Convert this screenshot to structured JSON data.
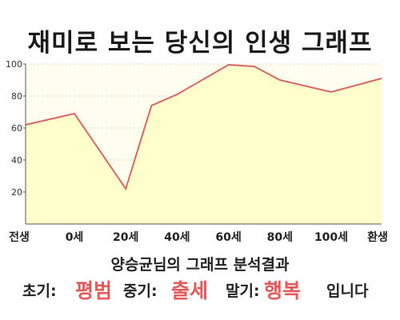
{
  "title": "재미로 보는 당신의 인생 그래프",
  "chart_data": {
    "type": "area",
    "x": [
      "전생",
      "0세",
      "20세",
      "40세",
      "60세",
      "80세",
      "100세",
      "환생"
    ],
    "points": [
      {
        "x": "전생",
        "y": 62
      },
      {
        "x": "0세",
        "y": 69
      },
      {
        "x": "20세",
        "y": 22
      },
      {
        "x": "30세",
        "y": 74
      },
      {
        "x": "40세",
        "y": 81
      },
      {
        "x": "60세",
        "y": 99.5
      },
      {
        "x": "70세",
        "y": 98.5
      },
      {
        "x": "80세",
        "y": 90
      },
      {
        "x": "100세",
        "y": 82.5
      },
      {
        "x": "환생",
        "y": 91
      }
    ],
    "ylim": [
      0,
      100
    ],
    "yticks": [
      20,
      40,
      60,
      80,
      100
    ],
    "grid": "dashed",
    "line_color": "#d96666",
    "fill_color": "#ffffcc"
  },
  "result": {
    "heading": "양승균님의 그래프 분석결과",
    "early_label": "초기:",
    "early_value": "평범",
    "middle_label": "중기:",
    "middle_value": "출세",
    "late_label": "말기:",
    "late_value": "행복",
    "ending": "입니다"
  },
  "colors": {
    "highlight": "#e45a5a"
  }
}
